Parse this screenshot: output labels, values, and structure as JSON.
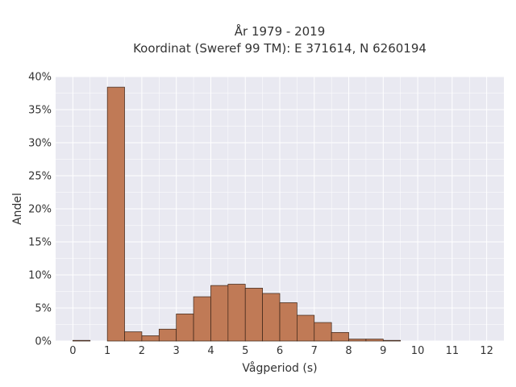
{
  "chart_data": {
    "type": "bar",
    "title": "År 1979 - 2019",
    "subtitle": "Koordinat (Sweref 99 TM): E 371614, N 6260194",
    "xlabel": "Vågperiod (s)",
    "ylabel": "Andel",
    "xlim": [
      -0.5,
      12.5
    ],
    "ylim": [
      0,
      40
    ],
    "xticks": [
      0,
      1,
      2,
      3,
      4,
      5,
      6,
      7,
      8,
      9,
      10,
      11,
      12
    ],
    "yticks": [
      "0%",
      "5%",
      "10%",
      "15%",
      "20%",
      "25%",
      "30%",
      "35%",
      "40%"
    ],
    "ytick_values": [
      0,
      5,
      10,
      15,
      20,
      25,
      30,
      35,
      40
    ],
    "bin_width": 0.5,
    "bins": [
      {
        "start": 0.0,
        "value": 0.1
      },
      {
        "start": 1.0,
        "value": 38.4
      },
      {
        "start": 1.5,
        "value": 1.4
      },
      {
        "start": 2.0,
        "value": 0.8
      },
      {
        "start": 2.5,
        "value": 1.8
      },
      {
        "start": 3.0,
        "value": 4.1
      },
      {
        "start": 3.5,
        "value": 6.7
      },
      {
        "start": 4.0,
        "value": 8.4
      },
      {
        "start": 4.5,
        "value": 8.6
      },
      {
        "start": 5.0,
        "value": 8.0
      },
      {
        "start": 5.5,
        "value": 7.2
      },
      {
        "start": 6.0,
        "value": 5.8
      },
      {
        "start": 6.5,
        "value": 3.9
      },
      {
        "start": 7.0,
        "value": 2.8
      },
      {
        "start": 7.5,
        "value": 1.3
      },
      {
        "start": 8.0,
        "value": 0.3
      },
      {
        "start": 8.5,
        "value": 0.3
      },
      {
        "start": 9.0,
        "value": 0.1
      }
    ],
    "grid": true,
    "colors": {
      "bar_fill": "#c07a56",
      "bar_stroke": "#3a2418",
      "plot_background": "#e9e9f1",
      "grid": "#ffffff"
    }
  }
}
